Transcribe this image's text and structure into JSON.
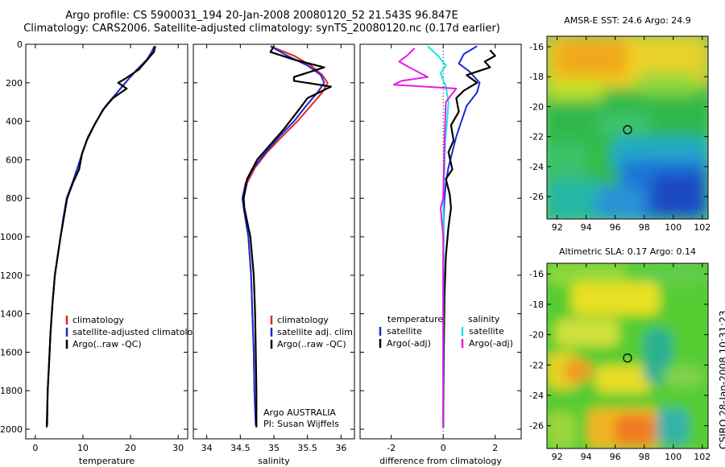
{
  "header": {
    "line1": "Argo profile: CS 5900031_194 20-Jan-2008 20080120_52 21.543S 96.847E",
    "line2": "Climatology: CARS2006. Satellite-adjusted climatology: synTS_20080120.nc (0.17d earlier)"
  },
  "side_stamp": "CSIRO 28-Jan-2008 10:31:23",
  "colors": {
    "red": "#e8251e",
    "blue": "#1a2ad6",
    "black": "#000000",
    "cyan": "#19e6e6",
    "magenta": "#e619e6"
  },
  "chart_data": [
    {
      "type": "line",
      "xlabel": "temperature",
      "ylabel": "",
      "xlim": [
        -2,
        32
      ],
      "ylim": [
        2050,
        0
      ],
      "xticks": [
        0,
        10,
        20,
        30
      ],
      "yticks": [
        0,
        200,
        400,
        600,
        800,
        1000,
        1200,
        1400,
        1600,
        1800,
        2000
      ],
      "legend": [
        "climatology",
        "satellite-adjusted climatology",
        "Argo(..raw -QC)"
      ],
      "series": [
        {
          "name": "climatology",
          "color": "red",
          "x": [
            25,
            24.6,
            23.6,
            21.5,
            19.6,
            17.2,
            14.8,
            12.8,
            11.1,
            9.9,
            8.9,
            7.8,
            6.6,
            5.9,
            5.3,
            4.7,
            4.1,
            3.6,
            3.2,
            2.9,
            2.6,
            2.5
          ],
          "y": [
            10,
            40,
            80,
            130,
            180,
            250,
            320,
            400,
            480,
            560,
            640,
            720,
            800,
            900,
            1000,
            1100,
            1200,
            1350,
            1500,
            1650,
            1800,
            1980
          ]
        },
        {
          "name": "satellite-adjusted climatology",
          "color": "blue",
          "x": [
            25,
            24.4,
            23.4,
            21.4,
            19.6,
            17.2,
            14.8,
            12.8,
            11.1,
            9.9,
            8.9,
            7.8,
            6.6,
            5.9,
            5.3,
            4.7,
            4.1,
            3.6,
            3.2,
            2.9,
            2.6,
            2.5
          ],
          "y": [
            10,
            40,
            80,
            130,
            180,
            250,
            320,
            400,
            480,
            560,
            640,
            720,
            800,
            900,
            1000,
            1100,
            1200,
            1350,
            1500,
            1650,
            1800,
            1980
          ]
        },
        {
          "name": "Argo(..raw -QC)",
          "color": "black",
          "x": [
            25.2,
            24.9,
            23.5,
            21.8,
            18.8,
            17.4,
            19.2,
            16.3,
            14.2,
            12.4,
            10.8,
            9.8,
            9.2,
            7.9,
            6.7,
            6.0,
            5.3,
            4.7,
            4.1,
            3.6,
            3.2,
            2.9,
            2.6,
            2.4
          ],
          "y": [
            10,
            40,
            80,
            130,
            180,
            200,
            230,
            280,
            340,
            420,
            500,
            570,
            650,
            720,
            800,
            900,
            1000,
            1100,
            1200,
            1350,
            1500,
            1650,
            1800,
            1990
          ]
        }
      ]
    },
    {
      "type": "line",
      "xlabel": "salinity",
      "ylabel": "",
      "xlim": [
        33.8,
        36.2
      ],
      "ylim": [
        2050,
        0
      ],
      "xticks": [
        34,
        34.5,
        35,
        35.5,
        36
      ],
      "xticklabels": [
        "34",
        "34.5",
        "35",
        "35.5",
        "36"
      ],
      "legend": [
        "climatology",
        "satellite adj. clim.",
        "Argo(..raw -QC)"
      ],
      "annotations": [
        "Argo AUSTRALIA",
        "PI: Susan Wijffels"
      ],
      "series": [
        {
          "name": "climatology",
          "color": "red",
          "x": [
            34.95,
            35.3,
            35.55,
            35.72,
            35.8,
            35.72,
            35.55,
            35.35,
            35.12,
            34.9,
            34.72,
            34.6,
            34.55,
            34.55,
            34.62,
            34.66,
            34.68,
            34.7,
            34.71,
            34.72,
            34.73
          ],
          "y": [
            10,
            60,
            110,
            160,
            200,
            250,
            320,
            400,
            480,
            560,
            640,
            720,
            800,
            850,
            1000,
            1200,
            1400,
            1600,
            1800,
            1900,
            1980
          ]
        },
        {
          "name": "satellite adj. clim.",
          "color": "blue",
          "x": [
            34.95,
            35.2,
            35.5,
            35.7,
            35.75,
            35.65,
            35.48,
            35.3,
            35.08,
            34.88,
            34.7,
            34.58,
            34.53,
            34.55,
            34.62,
            34.66,
            34.68,
            34.7,
            34.71,
            34.72,
            34.73
          ],
          "y": [
            10,
            60,
            110,
            160,
            200,
            250,
            320,
            400,
            480,
            560,
            640,
            720,
            800,
            850,
            1000,
            1200,
            1400,
            1600,
            1800,
            1900,
            1980
          ]
        },
        {
          "name": "Argo(..raw -QC)",
          "color": "black",
          "x": [
            35.0,
            34.95,
            35.3,
            35.75,
            35.3,
            35.3,
            35.85,
            35.5,
            35.35,
            35.15,
            34.95,
            34.75,
            34.6,
            34.55,
            34.56,
            34.65,
            34.7,
            34.72,
            34.73,
            34.74,
            34.74
          ],
          "y": [
            10,
            40,
            80,
            120,
            170,
            190,
            220,
            280,
            350,
            440,
            520,
            600,
            700,
            800,
            850,
            1000,
            1200,
            1400,
            1600,
            1800,
            1990
          ]
        }
      ]
    },
    {
      "type": "line",
      "xlabel": "difference from climatology",
      "ylabel": "",
      "xlim": [
        -3.2,
        3.0
      ],
      "ylim": [
        2050,
        0
      ],
      "xticks": [
        -2,
        0,
        2
      ],
      "legend_left_title": "temperature",
      "legend_right_title": "salinity",
      "legend": [
        "satellite",
        "Argo(-adj)",
        "satellite",
        "Argo(-adj)"
      ],
      "series": [
        {
          "name": "satellite",
          "color": "blue",
          "x": [
            1.3,
            0.8,
            0.6,
            1.0,
            1.4,
            1.3,
            0.9,
            0.7,
            0.5,
            0.35,
            0.2,
            0.1,
            0.05,
            0.02,
            0.0,
            0.0
          ],
          "y": [
            10,
            50,
            100,
            140,
            200,
            250,
            320,
            400,
            480,
            560,
            640,
            720,
            800,
            900,
            1200,
            1990
          ]
        },
        {
          "name": "Argo(-adj)",
          "color": "black",
          "x": [
            1.8,
            2.0,
            1.6,
            1.8,
            0.9,
            1.3,
            0.8,
            0.5,
            0.6,
            0.3,
            0.4,
            0.2,
            0.35,
            0.1,
            0.25,
            0.3,
            0.2,
            0.1,
            0.05,
            0.02,
            0.0
          ],
          "y": [
            30,
            60,
            90,
            120,
            160,
            200,
            240,
            280,
            350,
            420,
            500,
            560,
            650,
            700,
            780,
            850,
            950,
            1100,
            1300,
            1600,
            1990
          ]
        },
        {
          "name": "satellite",
          "color": "cyan",
          "x": [
            -0.6,
            -0.2,
            0.1,
            -0.1,
            0.1,
            0.2,
            0.15,
            0.08,
            0.05,
            0.0,
            0.02,
            0.0,
            0.0
          ],
          "y": [
            10,
            60,
            110,
            150,
            220,
            300,
            400,
            500,
            640,
            800,
            1000,
            1400,
            1990
          ]
        },
        {
          "name": "Argo(-adj)",
          "color": "magenta",
          "x": [
            -1.1,
            -1.4,
            -1.7,
            -1.3,
            -0.6,
            -1.6,
            -1.9,
            0.5,
            0.1,
            0.05,
            0.0,
            -0.1,
            0.0,
            0.0
          ],
          "y": [
            20,
            60,
            90,
            120,
            170,
            190,
            210,
            230,
            300,
            500,
            800,
            850,
            1000,
            1990
          ]
        }
      ]
    },
    {
      "type": "heatmap",
      "title": "AMSR-E SST: 24.6 Argo: 24.9",
      "xlabel": "",
      "ylabel": "",
      "xlim": [
        91.3,
        102.4
      ],
      "ylim": [
        -27.5,
        -15.3
      ],
      "xticks": [
        92,
        94,
        96,
        98,
        100,
        102
      ],
      "yticks": [
        -16,
        -18,
        -20,
        -22,
        -24,
        -26
      ],
      "marker": {
        "x": 96.85,
        "y": -21.54
      }
    },
    {
      "type": "heatmap",
      "title": "Altimetric SLA: 0.17 Argo: 0.14",
      "xlabel": "",
      "ylabel": "",
      "xlim": [
        91.3,
        102.4
      ],
      "ylim": [
        -27.5,
        -15.3
      ],
      "xticks": [
        92,
        94,
        96,
        98,
        100,
        102
      ],
      "yticks": [
        -16,
        -18,
        -20,
        -22,
        -24,
        -26
      ],
      "marker": {
        "x": 96.85,
        "y": -21.54
      }
    }
  ]
}
